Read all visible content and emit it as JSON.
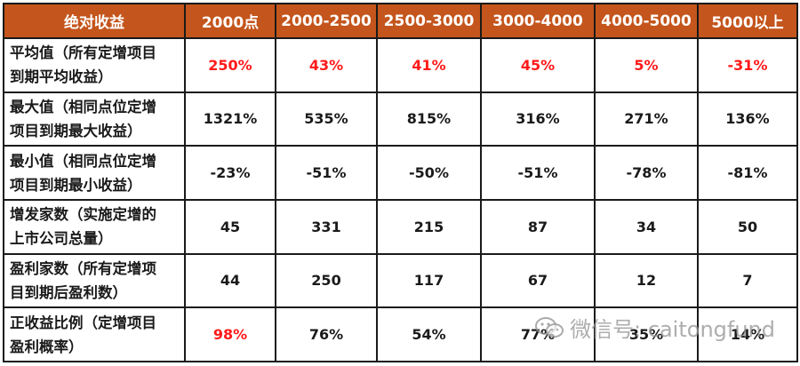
{
  "header": {
    "cells": [
      "绝对收益",
      "2000点",
      "2000-2500",
      "2500-3000",
      "3000-4000",
      "4000-5000",
      "5000以上"
    ]
  },
  "rows": [
    {
      "label_line1": "平均值（所有定增项目",
      "label_line2": "到期平均收益）",
      "values": [
        "250%",
        "43%",
        "41%",
        "45%",
        "5%",
        "-31%"
      ],
      "value_color": "#ff1a1a"
    },
    {
      "label_line1": "最大值（相同点位定增",
      "label_line2": "项目到期最大收益）",
      "values": [
        "1321%",
        "535%",
        "815%",
        "316%",
        "271%",
        "136%"
      ]
    },
    {
      "label_line1": "最小值（相同点位定增",
      "label_line2": "项目到期最小收益）",
      "values": [
        "-23%",
        "-51%",
        "-50%",
        "-51%",
        "-78%",
        "-81%"
      ]
    },
    {
      "label_line1": "增发家数（实施定增的",
      "label_line2": "上市公司总量）",
      "values": [
        "45",
        "331",
        "215",
        "87",
        "34",
        "50"
      ]
    },
    {
      "label_line1": "盈利家数（所有定增项",
      "label_line2": "目到期后盈利数）",
      "values": [
        "44",
        "250",
        "117",
        "67",
        "12",
        "7"
      ]
    },
    {
      "label_line1": "正收益比例（定增项目",
      "label_line2": "盈利概率）",
      "values": [
        "98%",
        "76%",
        "54%",
        "77%",
        "35%",
        "14%"
      ],
      "first_value_color": "#ff1a1a"
    }
  ],
  "watermark": {
    "text": "微信号: caitongfund",
    "icon": "wechat-icon"
  },
  "colors": {
    "header_bg": "#c4551c",
    "header_text": "#ffffff",
    "highlight": "#ff1a1a",
    "border": "#1a1a1a"
  }
}
